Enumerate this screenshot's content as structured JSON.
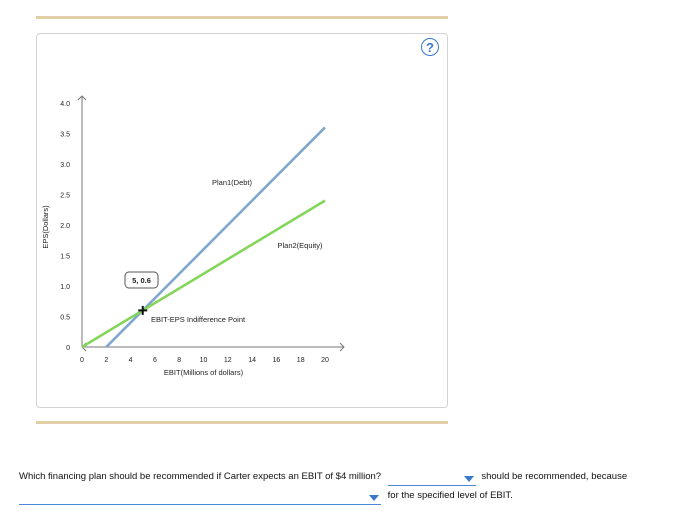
{
  "help_label": "?",
  "chart_data": {
    "type": "line",
    "xlabel": "EBIT(Millions of dollars)",
    "ylabel": "EPS(Dollars)",
    "xlim": [
      0,
      20
    ],
    "ylim": [
      0,
      4.0
    ],
    "x_ticks": [
      "0",
      "2",
      "4",
      "6",
      "8",
      "10",
      "12",
      "14",
      "16",
      "18",
      "20"
    ],
    "y_ticks": [
      "0",
      "0.5",
      "1.0",
      "1.5",
      "2.0",
      "2.5",
      "3.0",
      "3.5",
      "4.0"
    ],
    "grid": false,
    "series": [
      {
        "name": "Plan1(Debt)",
        "color": "#7fa6cc",
        "points": [
          [
            2,
            0
          ],
          [
            20,
            3.6
          ]
        ]
      },
      {
        "name": "Plan2(Equity)",
        "color": "#84d65a",
        "points": [
          [
            0,
            0
          ],
          [
            20,
            2.4
          ]
        ]
      }
    ],
    "annotations": {
      "point": {
        "x": 5,
        "y": 0.6
      },
      "point_label": "5, 0.6",
      "point_caption": "EBIT-EPS Indifference Point"
    }
  },
  "question": {
    "prefix": "Which financing plan should be recommended if Carter expects an EBIT of $4 million?",
    "middle": "should be recommended, because",
    "suffix": "for the specified level of EBIT.",
    "dropdown_plan_value": "",
    "dropdown_reason_value": ""
  }
}
